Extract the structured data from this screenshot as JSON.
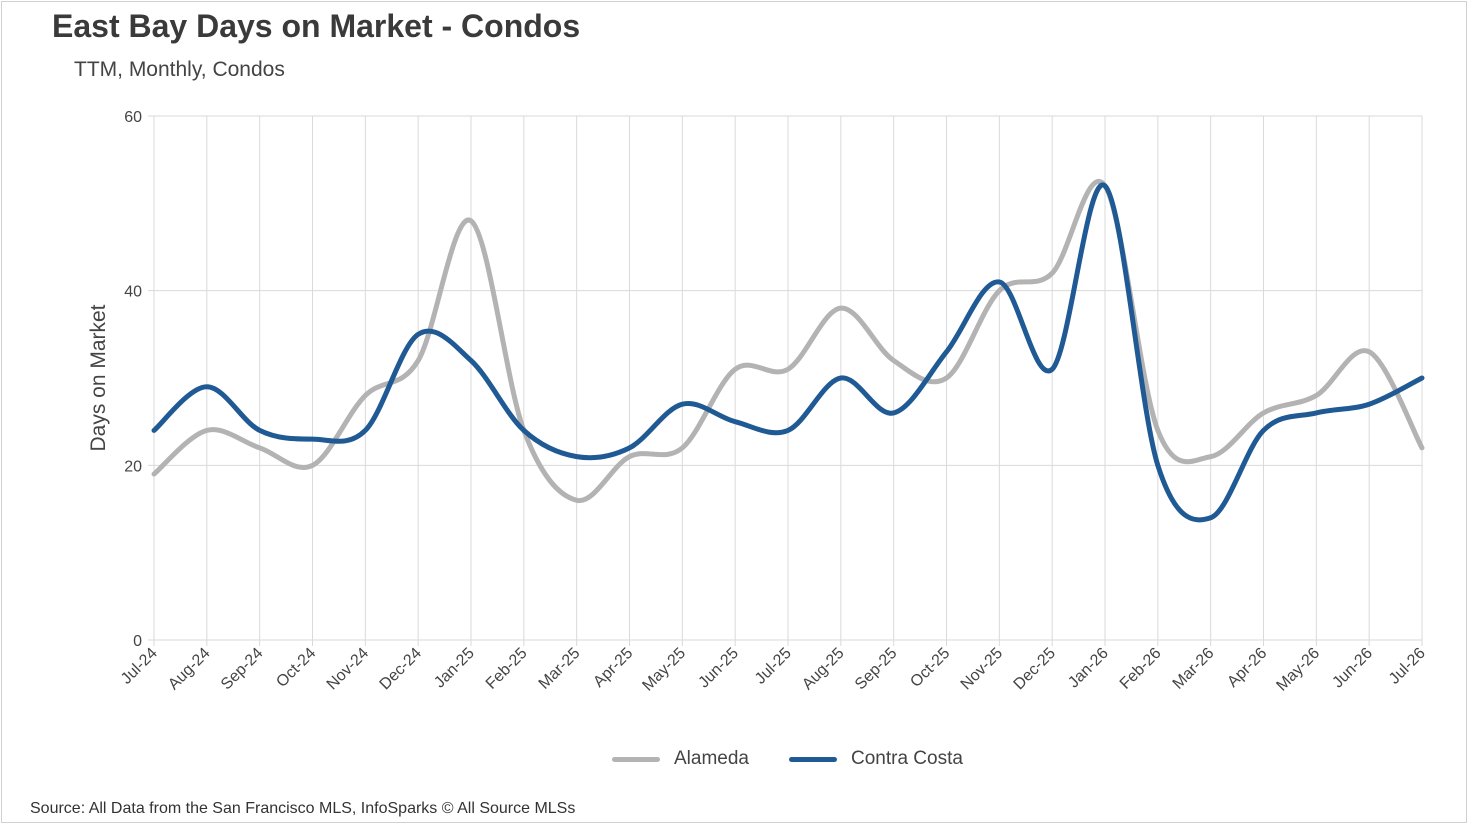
{
  "chart_data": {
    "type": "line",
    "title": "East Bay Days on Market - Condos",
    "subtitle": "TTM, Monthly, Condos",
    "xlabel": "",
    "ylabel": "Days on Market",
    "ylim": [
      0,
      60
    ],
    "yticks": [
      0,
      20,
      40,
      60
    ],
    "grid": true,
    "legend_position": "bottom",
    "categories": [
      "Jul-24",
      "Aug-24",
      "Sep-24",
      "Oct-24",
      "Nov-24",
      "Dec-24",
      "Jan-25",
      "Feb-25",
      "Mar-25",
      "Apr-25",
      "May-25",
      "Jun-25",
      "Jul-25",
      "Aug-25",
      "Sep-25",
      "Oct-25",
      "Nov-25",
      "Dec-25",
      "Jan-26",
      "Feb-26",
      "Mar-26",
      "Apr-26",
      "May-26",
      "Jun-26",
      "Jul-26"
    ],
    "series": [
      {
        "name": "Alameda",
        "color": "#b3b3b3",
        "values": [
          19,
          24,
          22,
          20,
          28,
          32,
          48,
          24,
          16,
          21,
          22,
          31,
          31,
          38,
          32,
          30,
          40,
          42,
          52,
          24,
          21,
          26,
          28,
          33,
          22
        ]
      },
      {
        "name": "Contra Costa",
        "color": "#1f5a94",
        "values": [
          24,
          29,
          24,
          23,
          24,
          35,
          32,
          24,
          21,
          22,
          27,
          25,
          24,
          30,
          26,
          33,
          41,
          31,
          52,
          20,
          14,
          24,
          26,
          27,
          30
        ]
      }
    ],
    "source": "Source: All Data from the San Francisco MLS, InfoSparks © All Source MLSs"
  }
}
